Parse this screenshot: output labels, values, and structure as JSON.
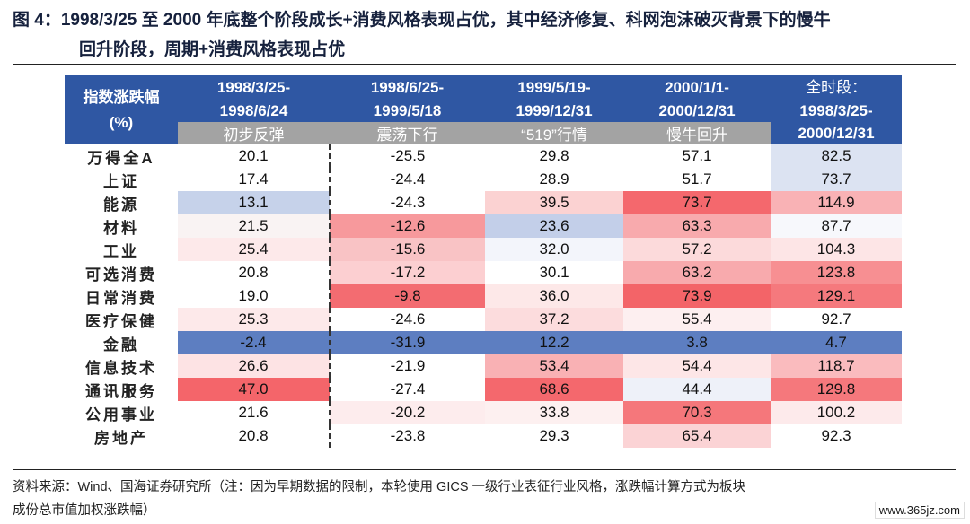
{
  "title": {
    "line1": "图 4：1998/3/25 至 2000 年底整个阶段成长+消费风格表现占优，其中经济修复、科网泡沫破灭背景下的慢牛",
    "line2": "回升阶段，周期+消费风格表现占优"
  },
  "table": {
    "corner_label": "指数涨跌幅",
    "corner_unit": "(%)",
    "periods": [
      {
        "range1": "1998/3/25-",
        "range2": "1998/6/24",
        "phase": "初步反弹"
      },
      {
        "range1": "1998/6/25-",
        "range2": "1999/5/18",
        "phase": "震荡下行"
      },
      {
        "range1": "1999/5/19-",
        "range2": "1999/12/31",
        "phase": "“519”行情"
      },
      {
        "range1": "2000/1/1-",
        "range2": "2000/12/31",
        "phase": "慢牛回升"
      },
      {
        "range1": "全时段：",
        "range2": "1998/3/25-",
        "phase": "2000/12/31"
      }
    ],
    "rows": [
      {
        "name": "万得全A",
        "values": [
          "20.1",
          "-25.5",
          "29.8",
          "57.1",
          "82.5"
        ]
      },
      {
        "name": "上证",
        "values": [
          "17.4",
          "-24.4",
          "28.9",
          "51.7",
          "73.7"
        ]
      },
      {
        "name": "能源",
        "values": [
          "13.1",
          "-24.3",
          "39.5",
          "73.7",
          "114.9"
        ]
      },
      {
        "name": "材料",
        "values": [
          "21.5",
          "-12.6",
          "23.6",
          "63.3",
          "87.7"
        ]
      },
      {
        "name": "工业",
        "values": [
          "25.4",
          "-15.6",
          "32.0",
          "57.2",
          "104.3"
        ]
      },
      {
        "name": "可选消费",
        "values": [
          "20.8",
          "-17.2",
          "30.1",
          "63.2",
          "123.8"
        ]
      },
      {
        "name": "日常消费",
        "values": [
          "19.0",
          "-9.8",
          "36.0",
          "73.9",
          "129.1"
        ]
      },
      {
        "name": "医疗保健",
        "values": [
          "25.3",
          "-24.6",
          "37.2",
          "55.4",
          "92.7"
        ]
      },
      {
        "name": "金融",
        "values": [
          "-2.4",
          "-31.9",
          "12.2",
          "3.8",
          "4.7"
        ]
      },
      {
        "name": "信息技术",
        "values": [
          "26.6",
          "-21.9",
          "53.4",
          "54.4",
          "118.7"
        ]
      },
      {
        "name": "通讯服务",
        "values": [
          "47.0",
          "-27.4",
          "68.6",
          "44.4",
          "129.8"
        ]
      },
      {
        "name": "公用事业",
        "values": [
          "21.6",
          "-20.2",
          "33.8",
          "70.3",
          "100.2"
        ]
      },
      {
        "name": "房地产",
        "values": [
          "20.8",
          "-23.8",
          "29.3",
          "65.4",
          "92.3"
        ]
      }
    ],
    "cell_colors": [
      [
        "#ffffff",
        "#ffffff",
        "#ffffff",
        "#ffffff",
        "#dce3f2"
      ],
      [
        "#ffffff",
        "#ffffff",
        "#ffffff",
        "#ffffff",
        "#dce3f2"
      ],
      [
        "#c6d2ea",
        "#ffffff",
        "#fbd2d2",
        "#f4686d",
        "#f9b2b5"
      ],
      [
        "#f9f3f3",
        "#f7999c",
        "#c3cfe9",
        "#f8aaad",
        "#f7f8fc"
      ],
      [
        "#fde9ea",
        "#f9c3c5",
        "#f3f5fb",
        "#fcdadb",
        "#fde5e6"
      ],
      [
        "#ffffff",
        "#fccfd1",
        "#ffffff",
        "#f8aaad",
        "#f78f92"
      ],
      [
        "#ffffff",
        "#f36c71",
        "#fde8e8",
        "#f36468",
        "#f5797d"
      ],
      [
        "#fde9ea",
        "#ffffff",
        "#fcdcdd",
        "#fdeff0",
        "#ffffff"
      ],
      [
        "#5d7ec1",
        "#5d7ec1",
        "#5d7ec1",
        "#5d7ec1",
        "#5d7ec1"
      ],
      [
        "#fde3e4",
        "#ffffff",
        "#f9b1b4",
        "#fde6e7",
        "#fabbbe"
      ],
      [
        "#f4656a",
        "#ffffff",
        "#f4686d",
        "#eef1f9",
        "#f5787c"
      ],
      [
        "#ffffff",
        "#fdeced",
        "#fdf0f0",
        "#f5777b",
        "#fdeaeb"
      ],
      [
        "#ffffff",
        "#ffffff",
        "#ffffff",
        "#fbd3d5",
        "#ffffff"
      ]
    ]
  },
  "footer": {
    "line1": "资料来源：Wind、国海证券研究所（注：因为早期数据的限制，本轮使用 GICS 一级行业表征行业风格，涨跌幅计算方式为板块",
    "line2": "成份总市值加权涨跌幅）"
  },
  "watermark": "www.365jz.com"
}
